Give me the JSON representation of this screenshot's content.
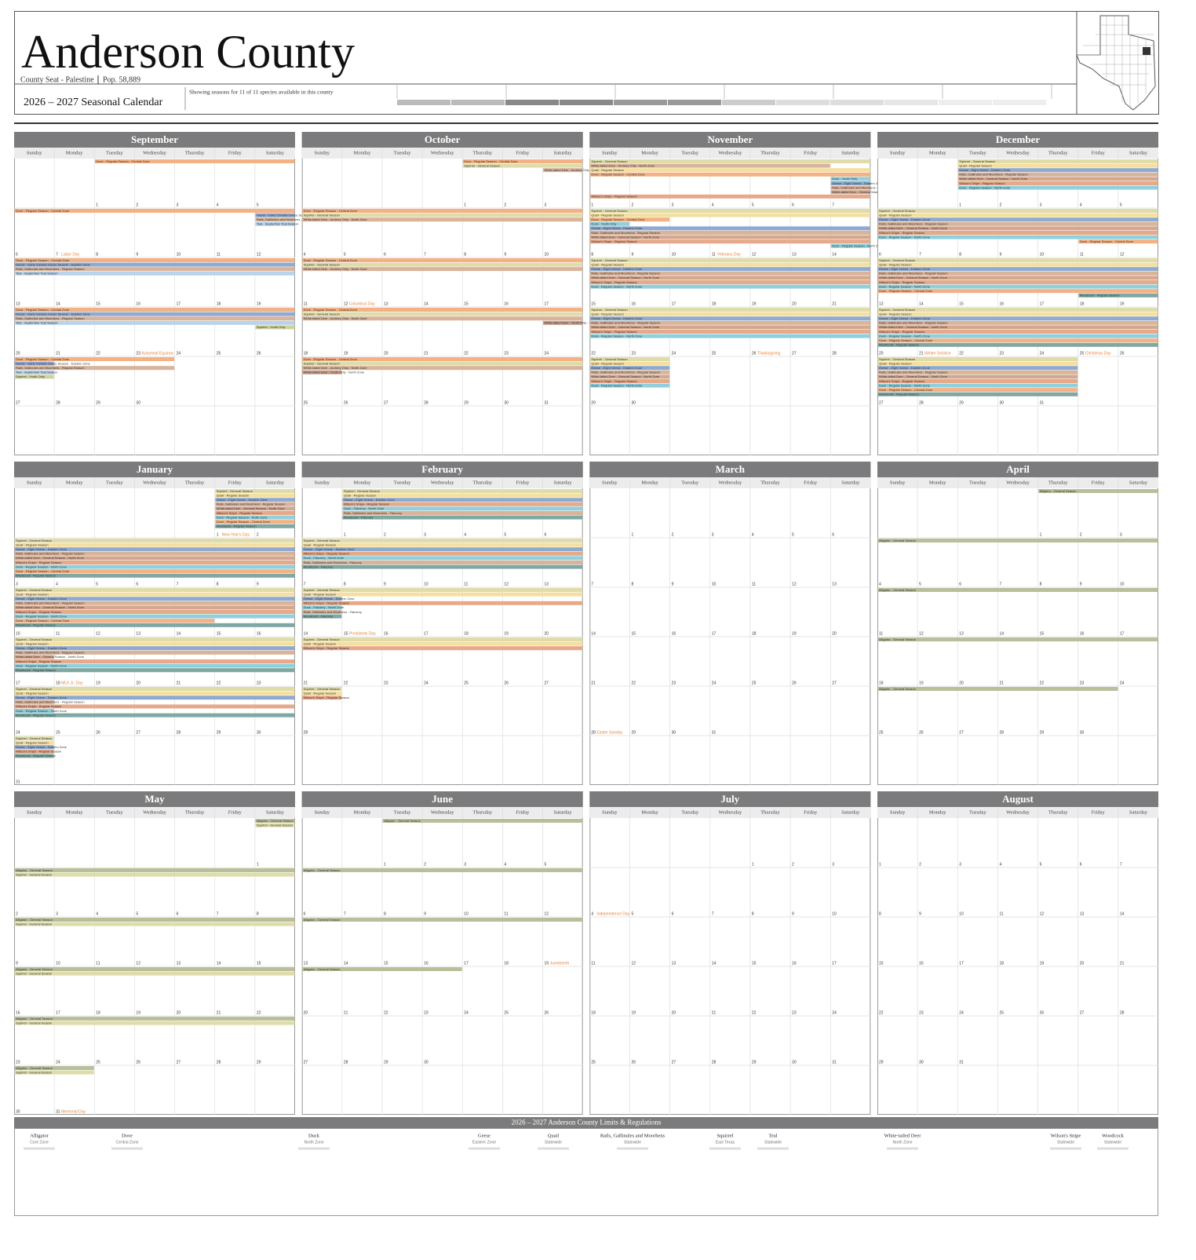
{
  "header": {
    "title": "Anderson County",
    "subtitle": "County Seat - Palestine",
    "population": "Pop. 58,889",
    "calendar_title": "2026 – 2027 Seasonal Calendar",
    "showing": "Showing seasons for 11 of 11 species available in this county"
  },
  "weekdays": [
    "Sunday",
    "Monday",
    "Tuesday",
    "Wednesday",
    "Thursday",
    "Friday",
    "Saturday"
  ],
  "months": [
    {
      "name": "September",
      "weeks": [
        [
          null,
          null,
          1,
          2,
          3,
          4,
          5
        ],
        [
          6,
          7,
          8,
          9,
          10,
          11,
          12
        ],
        [
          13,
          14,
          15,
          16,
          17,
          18,
          19
        ],
        [
          20,
          21,
          22,
          23,
          24,
          25,
          26
        ],
        [
          27,
          28,
          29,
          30,
          null,
          null,
          null
        ]
      ],
      "holidays": [
        {
          "day": 7,
          "label": "Labor Day"
        },
        {
          "day": 23,
          "label": "Autumnal Equinox"
        }
      ],
      "seasons": [
        {
          "label": "Dove - Regular Season - Central Zone",
          "color": "#f4b183",
          "start": 1,
          "end": 30
        },
        {
          "label": "Geese - Early Canada Goose Season - Eastern Zone",
          "color": "#8eaad0",
          "start": 12,
          "end": 27
        },
        {
          "label": "Rails, Gallinules and Moorhens - Regular Season",
          "color": "#d9b39a",
          "start": 12,
          "end": 30
        },
        {
          "label": "Teal - September Teal Season",
          "color": "#b8d3ea",
          "start": 12,
          "end": 27
        },
        {
          "label": "Squirrel - Youth Only",
          "color": "#cfd39a",
          "start": 26,
          "end": 27
        }
      ]
    },
    {
      "name": "October",
      "weeks": [
        [
          null,
          null,
          null,
          null,
          1,
          2,
          3
        ],
        [
          4,
          5,
          6,
          7,
          8,
          9,
          10
        ],
        [
          11,
          12,
          13,
          14,
          15,
          16,
          17
        ],
        [
          18,
          19,
          20,
          21,
          22,
          23,
          24
        ],
        [
          25,
          26,
          27,
          28,
          29,
          30,
          31
        ]
      ],
      "holidays": [
        {
          "day": 12,
          "label": "Columbus Day"
        }
      ],
      "seasons": [
        {
          "label": "Dove - Regular Season - Central Zone",
          "color": "#f4b183",
          "start": 1,
          "end": 31
        },
        {
          "label": "Squirrel - General Season",
          "color": "#dfdcaa",
          "start": 1,
          "end": 31
        },
        {
          "label": "White-tailed Deer - Archery Only - North Zone",
          "color": "#d9b39a",
          "start": 3,
          "end": 31
        },
        {
          "label": "White-tailed Deer - Youth Only - North Zone",
          "color": "#c8a08a",
          "start": 24,
          "end": 25
        }
      ]
    },
    {
      "name": "November",
      "weeks": [
        [
          1,
          2,
          3,
          4,
          5,
          6,
          7
        ],
        [
          8,
          9,
          10,
          11,
          12,
          13,
          14
        ],
        [
          15,
          16,
          17,
          18,
          19,
          20,
          21
        ],
        [
          22,
          23,
          24,
          25,
          26,
          27,
          28
        ],
        [
          29,
          30,
          null,
          null,
          null,
          null,
          null
        ]
      ],
      "holidays": [
        {
          "day": 11,
          "label": "Veterans Day"
        },
        {
          "day": 26,
          "label": "Thanksgiving"
        }
      ],
      "seasons": [
        {
          "label": "Squirrel - General Season",
          "color": "#dfdcaa",
          "start": 1,
          "end": 30
        },
        {
          "label": "White-tailed Deer - Archery Only - North Zone",
          "color": "#d9b39a",
          "start": 1,
          "end": 6
        },
        {
          "label": "Quail - Regular Season",
          "color": "#f5dfa0",
          "start": 1,
          "end": 30
        },
        {
          "label": "Dove - Regular Season - Central Zone",
          "color": "#f4b183",
          "start": 1,
          "end": 9
        },
        {
          "label": "Duck - Youth Only",
          "color": "#8fd0dc",
          "start": 7,
          "end": 8
        },
        {
          "label": "Geese - Eight Geese - Eastern Zone",
          "color": "#8eaad0",
          "start": 7,
          "end": 30
        },
        {
          "label": "Rails, Gallinules and Moorhens - Regular Season",
          "color": "#d9b39a",
          "start": 7,
          "end": 30
        },
        {
          "label": "White-tailed Deer - General Season - North Zone",
          "color": "#d4a88f",
          "start": 7,
          "end": 30
        },
        {
          "label": "Wilson's Snipe - Regular Season",
          "color": "#e6a98a",
          "start": 1,
          "end": 30
        },
        {
          "label": "Duck - Regular Season - North Zone",
          "color": "#8fd0dc",
          "start": 14,
          "end": 30
        }
      ]
    },
    {
      "name": "December",
      "weeks": [
        [
          null,
          null,
          1,
          2,
          3,
          4,
          5
        ],
        [
          6,
          7,
          8,
          9,
          10,
          11,
          12
        ],
        [
          13,
          14,
          15,
          16,
          17,
          18,
          19
        ],
        [
          20,
          21,
          22,
          23,
          24,
          25,
          26
        ],
        [
          27,
          28,
          29,
          30,
          31,
          null,
          null
        ]
      ],
      "holidays": [
        {
          "day": 21,
          "label": "Winter Solstice"
        },
        {
          "day": 25,
          "label": "Christmas Day"
        }
      ],
      "seasons": [
        {
          "label": "Squirrel - General Season",
          "color": "#dfdcaa",
          "start": 1,
          "end": 31
        },
        {
          "label": "Quail - Regular Season",
          "color": "#f5dfa0",
          "start": 1,
          "end": 31
        },
        {
          "label": "Geese - Eight Geese - Eastern Zone",
          "color": "#8eaad0",
          "start": 1,
          "end": 31
        },
        {
          "label": "Rails, Gallinules and Moorhens - Regular Season",
          "color": "#d9b39a",
          "start": 1,
          "end": 31
        },
        {
          "label": "White-tailed Deer - General Season - North Zone",
          "color": "#d4a88f",
          "start": 1,
          "end": 31
        },
        {
          "label": "Wilson's Snipe - Regular Season",
          "color": "#e6a98a",
          "start": 1,
          "end": 31
        },
        {
          "label": "Duck - Regular Season - North Zone",
          "color": "#8fd0dc",
          "start": 1,
          "end": 31
        },
        {
          "label": "Dove - Regular Season - Central Zone",
          "color": "#f4b183",
          "start": 11,
          "end": 31
        },
        {
          "label": "Woodcock - Regular Season",
          "color": "#7fa8a2",
          "start": 18,
          "end": 31
        }
      ]
    },
    {
      "name": "January",
      "weeks": [
        [
          null,
          null,
          null,
          null,
          null,
          1,
          2
        ],
        [
          3,
          4,
          5,
          6,
          7,
          8,
          9
        ],
        [
          10,
          11,
          12,
          13,
          14,
          15,
          16
        ],
        [
          17,
          18,
          19,
          20,
          21,
          22,
          23
        ],
        [
          24,
          25,
          26,
          27,
          28,
          29,
          30
        ],
        [
          31,
          null,
          null,
          null,
          null,
          null,
          null
        ]
      ],
      "holidays": [
        {
          "day": 1,
          "label": "New Year's Day"
        },
        {
          "day": 18,
          "label": "MLK Jr. Day"
        }
      ],
      "seasons": [
        {
          "label": "Squirrel - General Season",
          "color": "#dfdcaa",
          "start": 1,
          "end": 31
        },
        {
          "label": "Quail - Regular Season",
          "color": "#f5dfa0",
          "start": 1,
          "end": 31
        },
        {
          "label": "Geese - Eight Geese - Eastern Zone",
          "color": "#8eaad0",
          "start": 1,
          "end": 31
        },
        {
          "label": "Rails, Gallinules and Moorhens - Regular Season",
          "color": "#d9b39a",
          "start": 1,
          "end": 24
        },
        {
          "label": "White-tailed Deer - General Season - North Zone",
          "color": "#d4a88f",
          "start": 1,
          "end": 17
        },
        {
          "label": "Wilson's Snipe - Regular Season",
          "color": "#e6a98a",
          "start": 1,
          "end": 31
        },
        {
          "label": "Duck - Regular Season - North Zone",
          "color": "#8fd0dc",
          "start": 1,
          "end": 24
        },
        {
          "label": "Dove - Regular Season - Central Zone",
          "color": "#f4b183",
          "start": 1,
          "end": 14
        },
        {
          "label": "Woodcock - Regular Season",
          "color": "#7fa8a2",
          "start": 1,
          "end": 31
        }
      ]
    },
    {
      "name": "February",
      "weeks": [
        [
          null,
          1,
          2,
          3,
          4,
          5,
          6
        ],
        [
          7,
          8,
          9,
          10,
          11,
          12,
          13
        ],
        [
          14,
          15,
          16,
          17,
          18,
          19,
          20
        ],
        [
          21,
          22,
          23,
          24,
          25,
          26,
          27
        ],
        [
          28,
          null,
          null,
          null,
          null,
          null,
          null
        ]
      ],
      "holidays": [
        {
          "day": 15,
          "label": "Presidents Day"
        }
      ],
      "seasons": [
        {
          "label": "Squirrel - General Season",
          "color": "#dfdcaa",
          "start": 1,
          "end": 28
        },
        {
          "label": "Quail - Regular Season",
          "color": "#f5dfa0",
          "start": 1,
          "end": 28
        },
        {
          "label": "Geese - Eight Geese - Eastern Zone",
          "color": "#8eaad0",
          "start": 1,
          "end": 14
        },
        {
          "label": "Wilson's Snipe - Regular Season",
          "color": "#e6a98a",
          "start": 1,
          "end": 28
        },
        {
          "label": "Duck - Falconry - North Zone",
          "color": "#8fd0dc",
          "start": 1,
          "end": 14
        },
        {
          "label": "Rails, Gallinules and Moorhens - Falconry",
          "color": "#d9b39a",
          "start": 1,
          "end": 14
        },
        {
          "label": "Woodcock - Falconry",
          "color": "#7fa8a2",
          "start": 1,
          "end": 14
        }
      ]
    },
    {
      "name": "March",
      "weeks": [
        [
          null,
          1,
          2,
          3,
          4,
          5,
          6
        ],
        [
          7,
          8,
          9,
          10,
          11,
          12,
          13
        ],
        [
          14,
          15,
          16,
          17,
          18,
          19,
          20
        ],
        [
          21,
          22,
          23,
          24,
          25,
          26,
          27
        ],
        [
          28,
          29,
          30,
          31,
          null,
          null,
          null
        ]
      ],
      "holidays": [
        {
          "day": 28,
          "label": "Easter Sunday"
        }
      ],
      "seasons": []
    },
    {
      "name": "April",
      "weeks": [
        [
          null,
          null,
          null,
          null,
          1,
          2,
          3
        ],
        [
          4,
          5,
          6,
          7,
          8,
          9,
          10
        ],
        [
          11,
          12,
          13,
          14,
          15,
          16,
          17
        ],
        [
          18,
          19,
          20,
          21,
          22,
          23,
          24
        ],
        [
          25,
          26,
          27,
          28,
          29,
          30,
          null
        ]
      ],
      "holidays": [],
      "seasons": [
        {
          "label": "Alligator - General Season",
          "color": "#b9bf9a",
          "start": 1,
          "end": 30
        }
      ]
    },
    {
      "name": "May",
      "weeks": [
        [
          null,
          null,
          null,
          null,
          null,
          null,
          1
        ],
        [
          2,
          3,
          4,
          5,
          6,
          7,
          8
        ],
        [
          9,
          10,
          11,
          12,
          13,
          14,
          15
        ],
        [
          16,
          17,
          18,
          19,
          20,
          21,
          22
        ],
        [
          23,
          24,
          25,
          26,
          27,
          28,
          29
        ],
        [
          30,
          31,
          null,
          null,
          null,
          null,
          null
        ]
      ],
      "holidays": [
        {
          "day": 31,
          "label": "Memorial Day"
        }
      ],
      "seasons": [
        {
          "label": "Alligator - General Season",
          "color": "#b9bf9a",
          "start": 1,
          "end": 31
        },
        {
          "label": "Squirrel - General Season",
          "color": "#dfdcaa",
          "start": 1,
          "end": 31
        }
      ]
    },
    {
      "name": "June",
      "weeks": [
        [
          null,
          null,
          1,
          2,
          3,
          4,
          5
        ],
        [
          6,
          7,
          8,
          9,
          10,
          11,
          12
        ],
        [
          13,
          14,
          15,
          16,
          17,
          18,
          19
        ],
        [
          20,
          21,
          22,
          23,
          24,
          25,
          26
        ],
        [
          27,
          28,
          29,
          30,
          null,
          null,
          null
        ]
      ],
      "holidays": [
        {
          "day": 19,
          "label": "Juneteenth"
        }
      ],
      "seasons": [
        {
          "label": "Alligator - General Season",
          "color": "#b9bf9a",
          "start": 1,
          "end": 23
        }
      ]
    },
    {
      "name": "July",
      "weeks": [
        [
          null,
          null,
          null,
          null,
          1,
          2,
          3
        ],
        [
          4,
          5,
          6,
          7,
          8,
          9,
          10
        ],
        [
          11,
          12,
          13,
          14,
          15,
          16,
          17
        ],
        [
          18,
          19,
          20,
          21,
          22,
          23,
          24
        ],
        [
          25,
          26,
          27,
          28,
          29,
          30,
          31
        ]
      ],
      "holidays": [
        {
          "day": 4,
          "label": "Independence Day"
        }
      ],
      "seasons": []
    },
    {
      "name": "August",
      "weeks": [
        [
          1,
          2,
          3,
          4,
          5,
          6,
          7
        ],
        [
          8,
          9,
          10,
          11,
          12,
          13,
          14
        ],
        [
          15,
          16,
          17,
          18,
          19,
          20,
          21
        ],
        [
          22,
          23,
          24,
          25,
          26,
          27,
          28
        ],
        [
          29,
          30,
          31,
          null,
          null,
          null,
          null
        ]
      ],
      "holidays": [],
      "seasons": []
    }
  ],
  "regulations": {
    "title": "2026 – 2027 Anderson County  Limits & Regulations",
    "species": [
      {
        "name": "Alligator",
        "zone": "Core Zone"
      },
      {
        "name": "Dove",
        "zone": "Central Zone"
      },
      {
        "name": "Duck",
        "zone": "North Zone"
      },
      {
        "name": "Geese",
        "zone": "Eastern Zone"
      },
      {
        "name": "Quail",
        "zone": "Statewide"
      },
      {
        "name": "Rails, Gallinules and Moorhens",
        "zone": "Statewide"
      },
      {
        "name": "Squirrel",
        "zone": "East Texas"
      },
      {
        "name": "Teal",
        "zone": "Statewide"
      },
      {
        "name": "White-tailed Deer",
        "zone": "North Zone"
      },
      {
        "name": "Wilson's Snipe",
        "zone": "Statewide"
      },
      {
        "name": "Woodcock",
        "zone": "Statewide"
      }
    ]
  }
}
